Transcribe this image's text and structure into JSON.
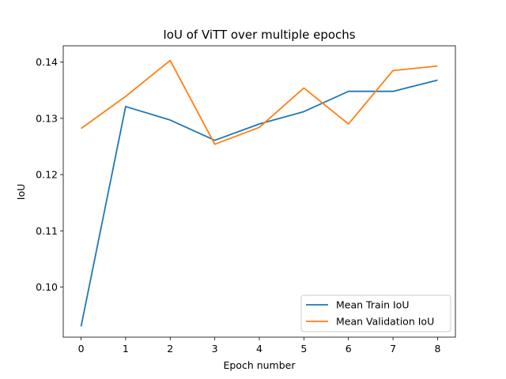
{
  "chart_data": {
    "type": "line",
    "title": "IoU of ViTT over multiple epochs",
    "xlabel": "Epoch number",
    "ylabel": "IoU",
    "x": [
      0,
      1,
      2,
      3,
      4,
      5,
      6,
      7,
      8
    ],
    "xticks": [
      "0",
      "1",
      "2",
      "3",
      "4",
      "5",
      "6",
      "7",
      "8"
    ],
    "yticks": [
      "0.10",
      "0.11",
      "0.12",
      "0.13",
      "0.14"
    ],
    "ytick_values": [
      0.1,
      0.11,
      0.12,
      0.13,
      0.14
    ],
    "xlim": [
      -0.4,
      8.4
    ],
    "ylim": [
      0.0911,
      0.1429
    ],
    "grid": false,
    "legend_position": "lower-right",
    "series": [
      {
        "name": "Mean Train IoU",
        "color": "#1f77b4",
        "values": [
          0.093,
          0.1321,
          0.1297,
          0.1261,
          0.129,
          0.1312,
          0.1348,
          0.1348,
          0.1368
        ]
      },
      {
        "name": "Mean Validation IoU",
        "color": "#ff7f0e",
        "values": [
          0.1282,
          0.1339,
          0.1403,
          0.1254,
          0.1284,
          0.1354,
          0.129,
          0.1385,
          0.1393
        ]
      }
    ]
  }
}
